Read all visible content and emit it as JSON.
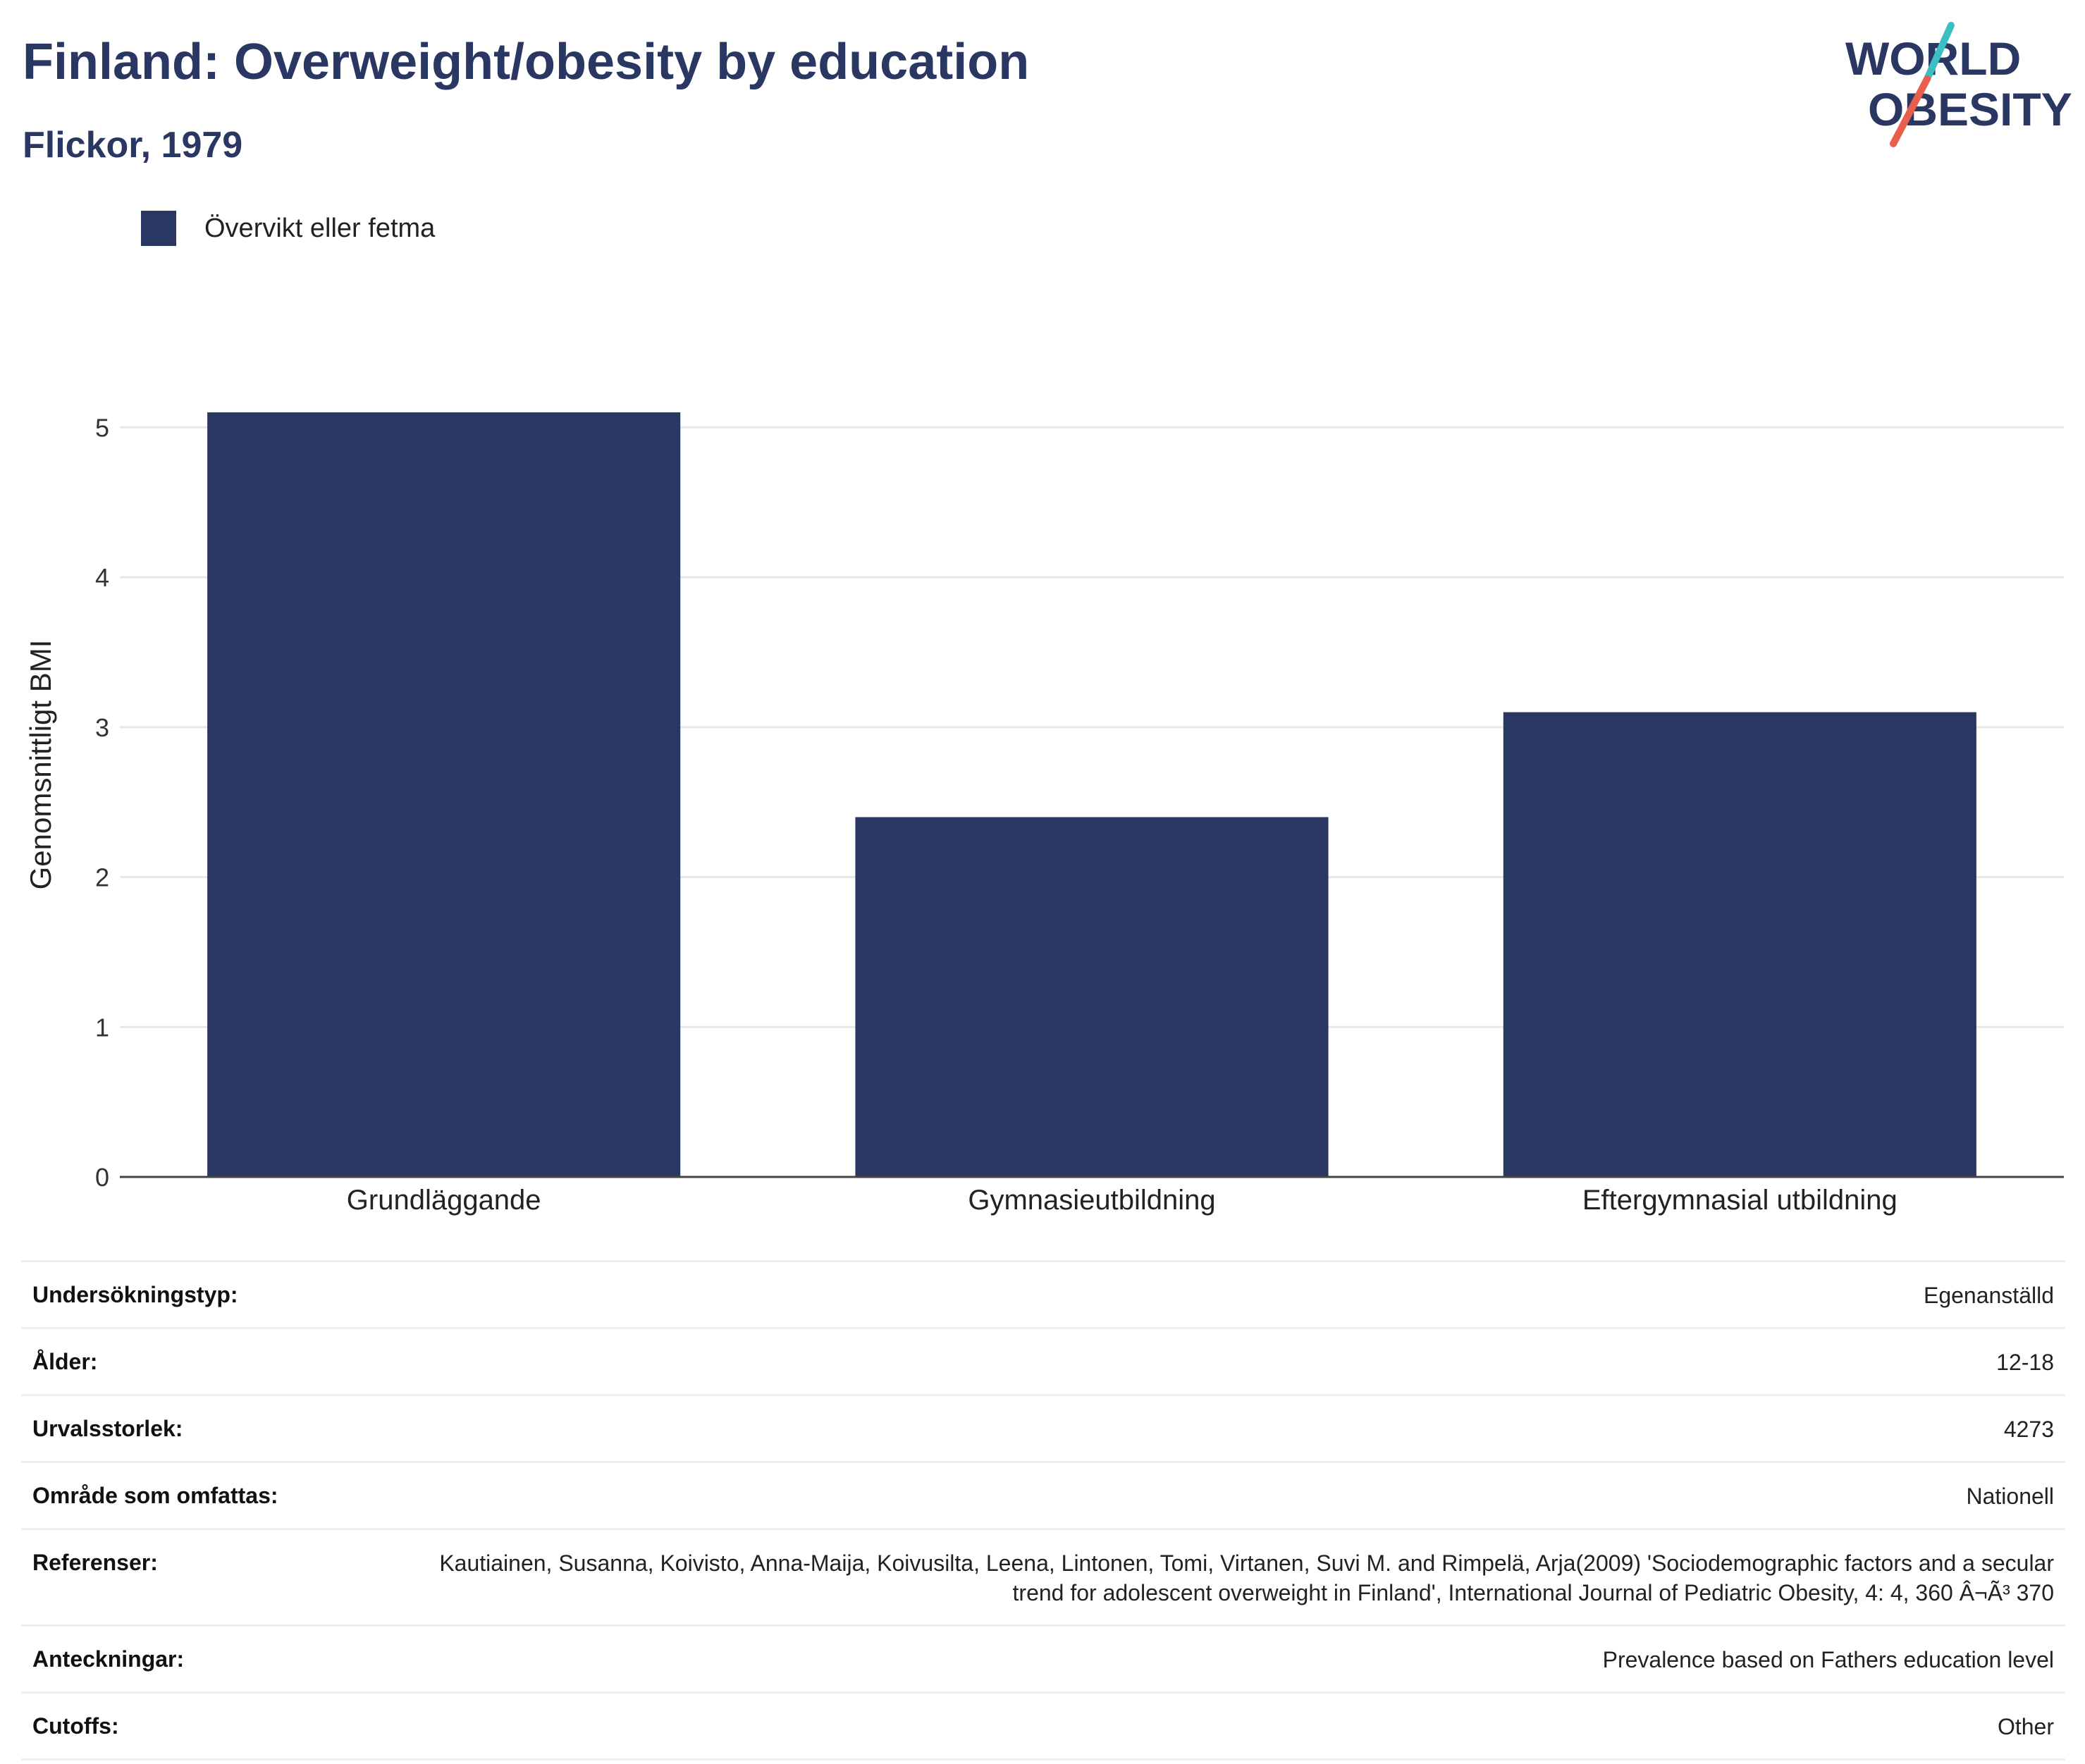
{
  "header": {
    "title": "Finland: Overweight/obesity by education",
    "subtitle": "Flickor, 1979"
  },
  "logo": {
    "line1": "WORLD",
    "line2": "OBESITY",
    "slash_colors": [
      "#3bbfc0",
      "#e8604c"
    ]
  },
  "colors": {
    "bar": "#2b3763",
    "title": "#2b3763",
    "grid": "#e8e8e8",
    "baseline": "#444444"
  },
  "legend": {
    "label": "Övervikt eller fetma"
  },
  "chart_data": {
    "type": "bar",
    "categories": [
      "Grundläggande",
      "Gymnasieutbildning",
      "Eftergymnasial utbildning"
    ],
    "series": [
      {
        "name": "Övervikt eller fetma",
        "values": [
          5.1,
          2.4,
          3.1
        ]
      }
    ],
    "ylabel": "Genomsnittligt BMI",
    "xlabel": "",
    "ylim": [
      0,
      5.5
    ],
    "yticks": [
      0,
      1,
      2,
      3,
      4,
      5
    ],
    "grid": true,
    "legend_position": "top-left"
  },
  "metadata": {
    "rows": [
      {
        "label": "Undersökningstyp:",
        "value": "Egenanställd"
      },
      {
        "label": "Ålder:",
        "value": "12-18"
      },
      {
        "label": "Urvalsstorlek:",
        "value": "4273"
      },
      {
        "label": "Område som omfattas:",
        "value": "Nationell"
      },
      {
        "label": "Referenser:",
        "value": "Kautiainen, Susanna, Koivisto, Anna-Maija, Koivusilta, Leena, Lintonen, Tomi, Virtanen, Suvi M. and Rimpelä, Arja(2009) 'Sociodemographic factors and a secular trend for adolescent overweight in Finland', International Journal of Pediatric Obesity, 4: 4, 360 Â¬Ã³ 370"
      },
      {
        "label": "Anteckningar:",
        "value": "Prevalence based on Fathers education level"
      },
      {
        "label": "Cutoffs:",
        "value": "Other"
      }
    ]
  }
}
